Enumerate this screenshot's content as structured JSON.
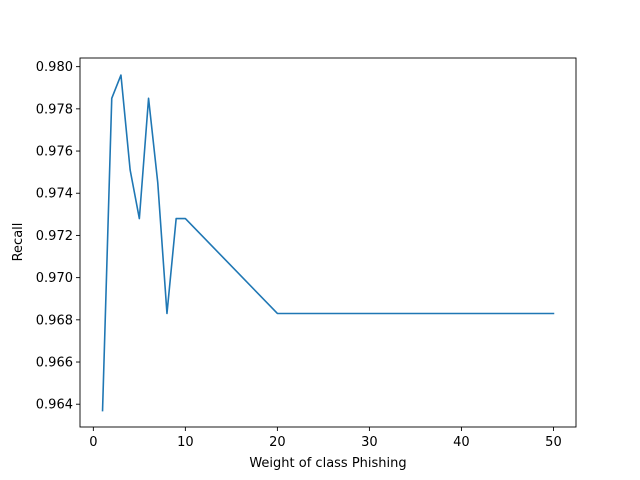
{
  "chart_data": {
    "type": "line",
    "title": "",
    "xlabel": "Weight of class Phishing",
    "ylabel": "Recall",
    "xlim": [
      -1.45,
      52.45
    ],
    "ylim": [
      0.96292,
      0.98041
    ],
    "x_ticks": [
      0,
      10,
      20,
      30,
      40,
      50
    ],
    "x_tick_labels": [
      "0",
      "10",
      "20",
      "30",
      "40",
      "50"
    ],
    "y_ticks": [
      0.964,
      0.966,
      0.968,
      0.97,
      0.972,
      0.974,
      0.976,
      0.978,
      0.98
    ],
    "y_tick_labels": [
      "0.964",
      "0.966",
      "0.968",
      "0.970",
      "0.972",
      "0.974",
      "0.976",
      "0.978",
      "0.980"
    ],
    "grid": false,
    "legend": "none",
    "series": [
      {
        "color": "#1f77b4",
        "x": [
          1,
          2,
          3,
          4,
          5,
          6,
          7,
          8,
          9,
          10,
          20,
          30,
          40,
          50
        ],
        "y": [
          0.9637,
          0.9785,
          0.9796,
          0.9751,
          0.9728,
          0.9785,
          0.9745,
          0.9683,
          0.9728,
          0.9728,
          0.9683,
          0.9683,
          0.9683,
          0.9683
        ]
      }
    ]
  }
}
